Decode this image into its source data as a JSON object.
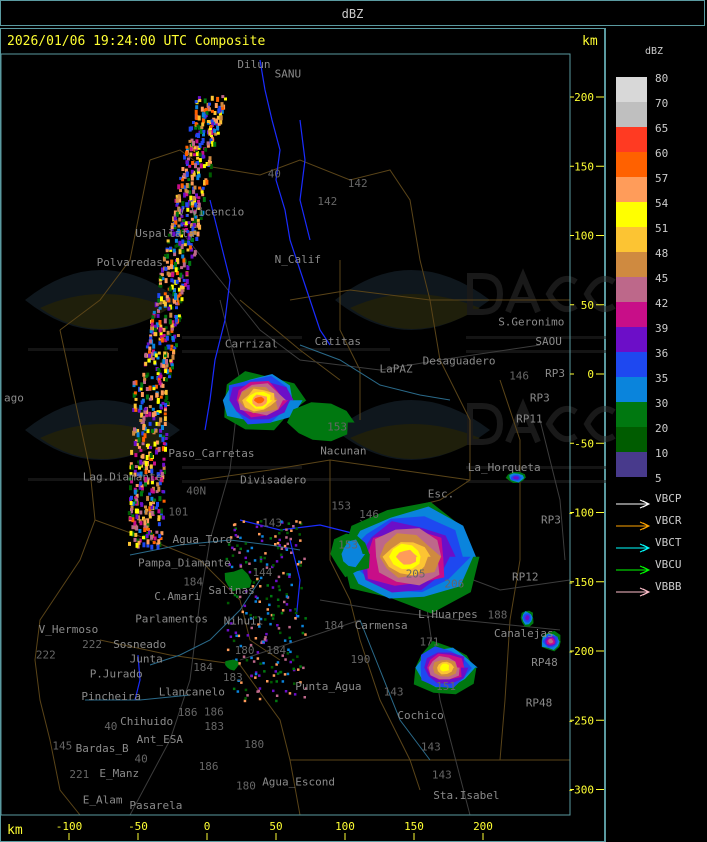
{
  "header": {
    "title": "dBZ"
  },
  "map": {
    "timestamp": "2026/01/06 19:24:00 UTC Composite",
    "unit_top": "km",
    "unit_bottom": "km",
    "x_ticks": [
      -100,
      -50,
      0,
      50,
      100,
      150,
      200
    ],
    "y_ticks": [
      200,
      150,
      100,
      50,
      0,
      -50,
      -100,
      -150,
      -200,
      -250,
      -300
    ],
    "xlim_km": [
      -150,
      263
    ],
    "ylim_km": [
      -319,
      231
    ],
    "watermark": {
      "name": "DACC",
      "line1": "Dirección de Agricultura",
      "line2": "y Contingencias Climáticas",
      "url": "http://www.contingencias.mendoza.gov.ar"
    },
    "places": [
      {
        "name": "Dilun",
        "x": 22,
        "y": 225
      },
      {
        "name": "SANU",
        "x": 49,
        "y": 214
      },
      {
        "name": "Uspallata",
        "x": -52,
        "y": 99
      },
      {
        "name": "Polvaredas",
        "x": -80,
        "y": 78
      },
      {
        "name": "V.Vicencio",
        "x": -21,
        "y": 105
      },
      {
        "name": "N_Calif",
        "x": 49,
        "y": 80
      },
      {
        "name": "Carrizal",
        "x": 13,
        "y": 19
      },
      {
        "name": "Catitas",
        "x": 78,
        "y": 21
      },
      {
        "name": "LaPAZ",
        "x": 125,
        "y": 1
      },
      {
        "name": "Desaguadero",
        "x": 149,
        "y": 7
      },
      {
        "name": "S.Geronimo",
        "x": 211,
        "y": 35
      },
      {
        "name": "SAOU",
        "x": 238,
        "y": 21
      },
      {
        "name": "RP3",
        "x": 245,
        "y": -2
      },
      {
        "name": "RP3",
        "x": 234,
        "y": -20
      },
      {
        "name": "RP11",
        "x": 224,
        "y": -35
      },
      {
        "name": "La_Horqueta",
        "x": 189,
        "y": -70
      },
      {
        "name": "Nacunan",
        "x": 82,
        "y": -58
      },
      {
        "name": "Divisadero",
        "x": 24,
        "y": -79
      },
      {
        "name": "Paso_Carretas",
        "x": -28,
        "y": -60
      },
      {
        "name": "Lag.Diamante",
        "x": -90,
        "y": -77
      },
      {
        "name": "Esc.",
        "x": 160,
        "y": -89
      },
      {
        "name": "RP3",
        "x": 242,
        "y": -108
      },
      {
        "name": "Agua_Toro",
        "x": -25,
        "y": -122
      },
      {
        "name": "Pampa_Diamante",
        "x": -50,
        "y": -139
      },
      {
        "name": "RP12",
        "x": 221,
        "y": -149
      },
      {
        "name": "Salinas",
        "x": 1,
        "y": -159
      },
      {
        "name": "C.Amari",
        "x": -31,
        "y": -163
      },
      {
        "name": "Parlamentos",
        "x": -52,
        "y": -170
      },
      {
        "name": "Sosneado",
        "x": -68,
        "y": -179
      },
      {
        "name": "Nihuil",
        "x": 12,
        "y": -181
      },
      {
        "name": "Carmensa",
        "x": 107,
        "y": -184
      },
      {
        "name": "L.Huarpes",
        "x": 153,
        "y": -176
      },
      {
        "name": "Canalejas",
        "x": 208,
        "y": -190
      },
      {
        "name": "V_Hermoso",
        "x": -122,
        "y": -187
      },
      {
        "name": "Junta",
        "x": -56,
        "y": -199
      },
      {
        "name": "P.Jurado",
        "x": -85,
        "y": -219
      },
      {
        "name": "Pincheira",
        "x": -91,
        "y": -226
      },
      {
        "name": "Llancanelo",
        "x": -35,
        "y": -232
      },
      {
        "name": "Punta_Agua",
        "x": 64,
        "y": -228
      },
      {
        "name": "RP48",
        "x": 235,
        "y": -211
      },
      {
        "name": "RP48",
        "x": 231,
        "y": -240
      },
      {
        "name": "Chihuido",
        "x": -63,
        "y": -244
      },
      {
        "name": "Ant_ESA",
        "x": -51,
        "y": -257
      },
      {
        "name": "Cochico",
        "x": 138,
        "y": -249
      },
      {
        "name": "Bardas_B",
        "x": -88,
        "y": -273
      },
      {
        "name": "E_Manz",
        "x": -78,
        "y": -291
      },
      {
        "name": "Agua_Escond",
        "x": 40,
        "y": -297
      },
      {
        "name": "E_Alam",
        "x": -90,
        "y": -310
      },
      {
        "name": "Pasarela",
        "x": -78,
        "y": -316
      },
      {
        "name": "Sta.Isabel",
        "x": 164,
        "y": -307
      },
      {
        "name": "ago",
        "x": -150,
        "y": -20
      }
    ],
    "routes": [
      {
        "name": "40",
        "x": 44,
        "y": 142
      },
      {
        "name": "142",
        "x": 102,
        "y": 135
      },
      {
        "name": "142",
        "x": 80,
        "y": 122
      },
      {
        "name": "40N",
        "x": -15,
        "y": -87
      },
      {
        "name": "101",
        "x": -28,
        "y": -102
      },
      {
        "name": "143",
        "x": 40,
        "y": -110
      },
      {
        "name": "153",
        "x": 90,
        "y": -98
      },
      {
        "name": "153",
        "x": 95,
        "y": -126
      },
      {
        "name": "146",
        "x": 103,
        "y": -104
      },
      {
        "name": "146",
        "x": 219,
        "y": -4
      },
      {
        "name": "153",
        "x": 87,
        "y": -50
      },
      {
        "name": "205",
        "x": 144,
        "y": -147
      },
      {
        "name": "206",
        "x": 172,
        "y": -154
      },
      {
        "name": "188",
        "x": 196,
        "y": -186
      },
      {
        "name": "184",
        "x": 92,
        "y": -184
      },
      {
        "name": "171",
        "x": 154,
        "y": -196
      },
      {
        "name": "151",
        "x": 166,
        "y": -228
      },
      {
        "name": "190",
        "x": 104,
        "y": -218
      },
      {
        "name": "143",
        "x": 128,
        "y": -232
      },
      {
        "name": "143",
        "x": 155,
        "y": -272
      },
      {
        "name": "143",
        "x": 163,
        "y": -292
      },
      {
        "name": "184",
        "x": -10,
        "y": -162
      },
      {
        "name": "180",
        "x": 20,
        "y": -202
      },
      {
        "name": "184",
        "x": 43,
        "y": -202
      },
      {
        "name": "184",
        "x": -10,
        "y": -224
      },
      {
        "name": "183",
        "x": -3,
        "y": -231
      },
      {
        "name": "183",
        "x": -2,
        "y": -257
      },
      {
        "name": "186",
        "x": -43,
        "y": -247
      },
      {
        "name": "186",
        "x": -24,
        "y": -256
      },
      {
        "name": "180",
        "x": 27,
        "y": -270
      },
      {
        "name": "186",
        "x": -6,
        "y": -286
      },
      {
        "name": "180",
        "x": 21,
        "y": -300
      },
      {
        "name": "145",
        "x": -112,
        "y": -271
      },
      {
        "name": "222",
        "x": -124,
        "y": -196
      },
      {
        "name": "222",
        "x": -76,
        "y": -198
      },
      {
        "name": "221",
        "x": -78,
        "y": -301
      },
      {
        "name": "40",
        "x": -60,
        "y": -257
      },
      {
        "name": "40",
        "x": -67,
        "y": -290
      },
      {
        "name": "144",
        "x": 33,
        "y": -146
      }
    ],
    "echoes": [
      {
        "x": 38,
        "y": -19,
        "rx": 30,
        "ry": 20,
        "max_dbz": 57
      },
      {
        "x": 145,
        "y": -132,
        "rx": 50,
        "ry": 38,
        "max_dbz": 54
      },
      {
        "x": 172,
        "y": -212,
        "rx": 24,
        "ry": 18,
        "max_dbz": 51
      },
      {
        "x": 224,
        "y": -75,
        "rx": 7,
        "ry": 4,
        "max_dbz": 36
      },
      {
        "x": 249,
        "y": -193,
        "rx": 8,
        "ry": 7,
        "max_dbz": 42
      },
      {
        "x": 232,
        "y": -176,
        "rx": 5,
        "ry": 6,
        "max_dbz": 36
      },
      {
        "x": 22,
        "y": -149,
        "rx": 10,
        "ry": 8,
        "max_dbz": 20
      },
      {
        "x": 18,
        "y": -210,
        "rx": 5,
        "ry": 4,
        "max_dbz": 20
      },
      {
        "x": 105,
        "y": -130,
        "rx": 14,
        "ry": 16,
        "max_dbz": 30
      },
      {
        "x": 83,
        "y": -35,
        "rx": 22,
        "ry": 14,
        "max_dbz": 20
      }
    ]
  },
  "legend": {
    "unit": "dBZ",
    "levels": [
      {
        "label": "80",
        "color": "#d8d8d8"
      },
      {
        "label": "70",
        "color": "#bfbfbf"
      },
      {
        "label": "65",
        "color": "#ff3a22"
      },
      {
        "label": "60",
        "color": "#ff6100"
      },
      {
        "label": "57",
        "color": "#ff9c5a"
      },
      {
        "label": "54",
        "color": "#ffff00"
      },
      {
        "label": "51",
        "color": "#fcc433"
      },
      {
        "label": "48",
        "color": "#cf8a40"
      },
      {
        "label": "45",
        "color": "#bd688a"
      },
      {
        "label": "42",
        "color": "#c80e88"
      },
      {
        "label": "39",
        "color": "#6c0ec8"
      },
      {
        "label": "36",
        "color": "#1e48f0"
      },
      {
        "label": "35",
        "color": "#0a84dc"
      },
      {
        "label": "30",
        "color": "#007810"
      },
      {
        "label": "20",
        "color": "#005c00"
      },
      {
        "label": "10",
        "color": "#483a8c"
      }
    ],
    "bottom_label": "5",
    "radars": [
      {
        "name": "VBCP",
        "color": "#ffffff"
      },
      {
        "name": "VBCR",
        "color": "#ffa500"
      },
      {
        "name": "VBCT",
        "color": "#00ffff"
      },
      {
        "name": "VBCU",
        "color": "#00ff00"
      },
      {
        "name": "VBBB",
        "color": "#ffc0cb"
      }
    ]
  }
}
